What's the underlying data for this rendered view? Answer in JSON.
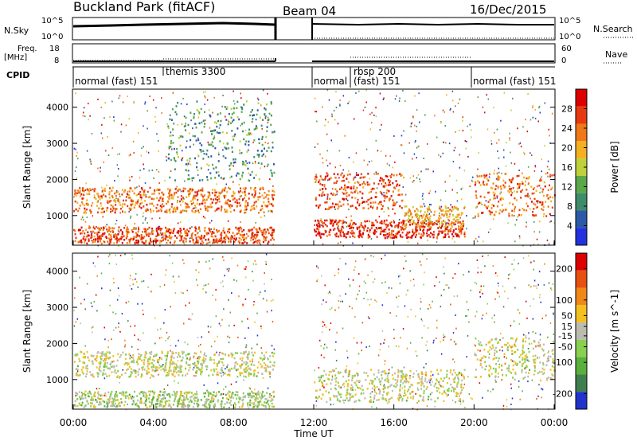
{
  "header": {
    "title": "Buckland Park (fitACF)",
    "beam": "Beam 04",
    "date": "16/Dec/2015"
  },
  "top_panels": {
    "nsky_label": "N.Sky",
    "nsky_ticks": [
      "10^5",
      "10^0"
    ],
    "nsearch_label": "N.Search",
    "nsearch_ticks": [
      "10^5",
      "10^0"
    ],
    "freq_label_line1": "Freq.",
    "freq_label_line2": "[MHz]",
    "freq_ticks": [
      "18",
      "8"
    ],
    "nave_label": "Nave",
    "nave_ticks": [
      "60",
      "0"
    ],
    "cpid_label": "CPID",
    "cpid_segments": [
      {
        "label": "normal (fast) 151",
        "start_hour": 0
      },
      {
        "label": "themis 3300",
        "start_hour": 4.7
      },
      {
        "label": "normal (fast) 151",
        "start_hour": 12
      },
      {
        "label": "rbsp 200",
        "start_hour": 14
      },
      {
        "label": "(fast) 151",
        "start_hour": 14
      },
      {
        "label": "normal (fast) 151",
        "start_hour": 20
      }
    ]
  },
  "x_axis": {
    "label": "Time UT",
    "ticks": [
      "00:00",
      "04:00",
      "08:00",
      "12:00",
      "16:00",
      "20:00",
      "00:00"
    ]
  },
  "colors": {
    "power_scale": [
      "#2233dd",
      "#2c5aa8",
      "#3f8c6a",
      "#5aa84a",
      "#bfd03a",
      "#f4b020",
      "#f07818",
      "#e83a10",
      "#dd0000"
    ],
    "velocity_scale": [
      "#2233cc",
      "#3f7f4f",
      "#5ab03c",
      "#8ad050",
      "#bbbbb0",
      "#f4c020",
      "#f08818",
      "#e85010",
      "#dd0000"
    ]
  },
  "chart_data": [
    {
      "type": "heatmap",
      "title": "Power",
      "xlabel": "Time UT",
      "ylabel": "Slant Range [km]",
      "xlim_hours": [
        0,
        24
      ],
      "ylim_km": [
        180,
        4500
      ],
      "y_ticks": [
        1000,
        2000,
        3000,
        4000
      ],
      "colorbar": {
        "label": "Power [dB]",
        "ticks": [
          4,
          8,
          12,
          16,
          20,
          24,
          28
        ],
        "range": [
          0,
          32
        ]
      },
      "data_gap_hours": [
        10,
        12
      ],
      "bands": [
        {
          "start_hour": 0,
          "end_hour": 10,
          "range_low_km": 1100,
          "range_high_km": 1800,
          "power_db": 24
        },
        {
          "start_hour": 0,
          "end_hour": 10,
          "range_low_km": 250,
          "range_high_km": 700,
          "power_db": 26
        },
        {
          "start_hour": 4.7,
          "end_hour": 10,
          "range_low_km": 2000,
          "range_high_km": 4200,
          "power_db": 10
        },
        {
          "start_hour": 12,
          "end_hour": 16.5,
          "range_low_km": 1200,
          "range_high_km": 2200,
          "power_db": 26
        },
        {
          "start_hour": 12,
          "end_hour": 19.5,
          "range_low_km": 400,
          "range_high_km": 900,
          "power_db": 28
        },
        {
          "start_hour": 16.5,
          "end_hour": 19.5,
          "range_low_km": 700,
          "range_high_km": 1300,
          "power_db": 20
        },
        {
          "start_hour": 20,
          "end_hour": 24,
          "range_low_km": 1000,
          "range_high_km": 2200,
          "power_db": 24
        }
      ]
    },
    {
      "type": "heatmap",
      "title": "Velocity",
      "xlabel": "Time UT",
      "ylabel": "Slant Range [km]",
      "xlim_hours": [
        0,
        24
      ],
      "ylim_km": [
        180,
        4500
      ],
      "y_ticks": [
        1000,
        2000,
        3000,
        4000
      ],
      "colorbar": {
        "label": "Velocity [m s^-1]",
        "ticks": [
          200,
          100,
          50,
          15,
          -15,
          -50,
          -100,
          -200
        ],
        "range": [
          -250,
          250
        ]
      },
      "data_gap_hours": [
        10,
        12
      ],
      "bands": [
        {
          "start_hour": 0,
          "end_hour": 10,
          "range_low_km": 1100,
          "range_high_km": 1800,
          "velocity_ms": 0
        },
        {
          "start_hour": 0,
          "end_hour": 10,
          "range_low_km": 250,
          "range_high_km": 700,
          "velocity_ms": -30
        },
        {
          "start_hour": 12,
          "end_hour": 19.5,
          "range_low_km": 400,
          "range_high_km": 1300,
          "velocity_ms": 0
        },
        {
          "start_hour": 20,
          "end_hour": 24,
          "range_low_km": 1000,
          "range_high_km": 2200,
          "velocity_ms": 0
        }
      ]
    }
  ]
}
